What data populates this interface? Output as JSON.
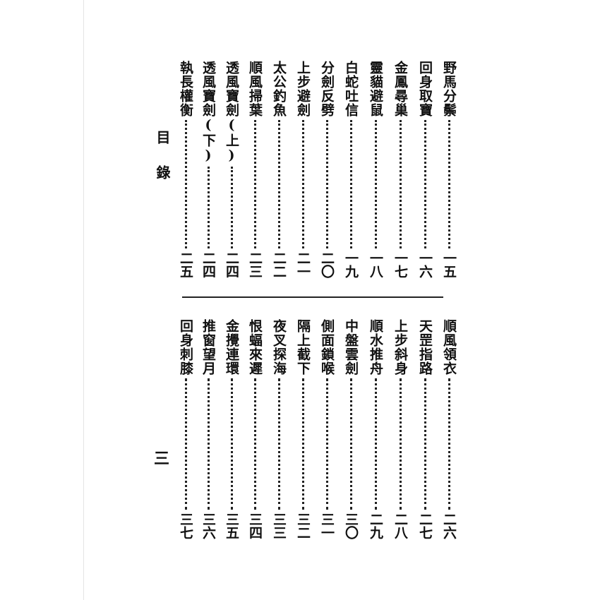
{
  "heading": "目錄",
  "page_number": "三",
  "top_entries": [
    {
      "title": "野馬分鬃",
      "page": "一五"
    },
    {
      "title": "回身取寶",
      "page": "一六"
    },
    {
      "title": "金鳳尋巢",
      "page": "一七"
    },
    {
      "title": "靈貓避鼠",
      "page": "一八"
    },
    {
      "title": "白蛇吐信",
      "page": "一九"
    },
    {
      "title": "分劍反劈",
      "page": "二〇"
    },
    {
      "title": "上步避劍",
      "page": "二一"
    },
    {
      "title": "太公釣魚",
      "page": "二二"
    },
    {
      "title": "順風掃葉",
      "page": "二三"
    },
    {
      "title": "透風寶劍(上)",
      "page": "二四"
    },
    {
      "title": "透風寶劍(下)",
      "page": "二四"
    },
    {
      "title": "執長權衡",
      "page": "二五"
    }
  ],
  "bottom_entries": [
    {
      "title": "順風領衣",
      "page": "二六"
    },
    {
      "title": "天罡指路",
      "page": "二七"
    },
    {
      "title": "上步斜身",
      "page": "二八"
    },
    {
      "title": "順水推舟",
      "page": "二九"
    },
    {
      "title": "中盤雲劍",
      "page": "三〇"
    },
    {
      "title": "側面鎖喉",
      "page": "三一"
    },
    {
      "title": "隔上截下",
      "page": "三二"
    },
    {
      "title": "夜叉探海",
      "page": "三三"
    },
    {
      "title": "恨蝠來遲",
      "page": "三四"
    },
    {
      "title": "金攪連環",
      "page": "三五"
    },
    {
      "title": "推窗望月",
      "page": "三六"
    },
    {
      "title": "回身刺膝",
      "page": "三七"
    }
  ]
}
